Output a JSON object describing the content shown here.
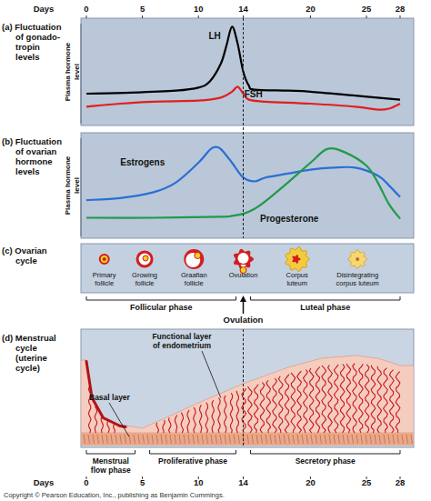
{
  "days_axis": {
    "label": "Days",
    "xlim": [
      0,
      28
    ],
    "ticks": [
      0,
      5,
      10,
      14,
      20,
      25,
      28
    ]
  },
  "chart_data": [
    {
      "type": "line",
      "title": "(a) Fluctuation of gonado-tropin levels",
      "ylabel": "Plasma hormone level",
      "xlim": [
        0,
        28
      ],
      "ylim": [
        0,
        100
      ],
      "tick_labels": false,
      "series": [
        {
          "name": "LH",
          "color": "#000000",
          "x": [
            0,
            4,
            8,
            10,
            11,
            12,
            12.5,
            13,
            13.5,
            14,
            14.5,
            15,
            18,
            20,
            24,
            28
          ],
          "values": [
            30,
            31,
            33,
            36,
            42,
            60,
            78,
            97,
            80,
            52,
            38,
            34,
            33,
            32,
            28,
            24
          ]
        },
        {
          "name": "FSH",
          "color": "#e0201e",
          "x": [
            0,
            3,
            6,
            10,
            12,
            13,
            13.5,
            14,
            14.5,
            16,
            20,
            24,
            26,
            27,
            28
          ],
          "values": [
            17,
            20,
            22,
            23,
            26,
            32,
            37,
            30,
            24,
            22,
            20,
            17,
            14,
            15,
            20
          ]
        }
      ]
    },
    {
      "type": "line",
      "title": "(b) Fluctuation of ovarian hormone levels",
      "ylabel": "Plasma hormone level",
      "xlim": [
        0,
        28
      ],
      "ylim": [
        0,
        100
      ],
      "tick_labels": false,
      "series": [
        {
          "name": "Estrogens",
          "color": "#2a6fd6",
          "x": [
            0,
            3,
            6,
            8,
            10,
            11,
            11.5,
            12,
            13,
            14,
            15,
            16,
            18,
            20,
            22,
            24,
            26,
            27,
            28
          ],
          "values": [
            37,
            39,
            45,
            55,
            75,
            88,
            91,
            89,
            75,
            60,
            56,
            60,
            64,
            68,
            70,
            70,
            62,
            52,
            40
          ]
        },
        {
          "name": "Progesterone",
          "color": "#1f9a4a",
          "x": [
            0,
            6,
            12,
            13,
            14,
            15,
            16,
            18,
            20,
            21.5,
            23,
            25,
            26,
            27,
            28
          ],
          "values": [
            19,
            19,
            20,
            21,
            23,
            28,
            36,
            55,
            75,
            89,
            86,
            72,
            55,
            33,
            18
          ]
        }
      ]
    }
  ],
  "ovarian_cycle": {
    "title": "(c) Ovarian cycle",
    "stages": [
      "Primary follicle",
      "Growing follicle",
      "Graafian follicle",
      "Ovulation",
      "Corpus luteum",
      "Disintegrating corpus luteum"
    ],
    "phases": [
      "Follicular phase",
      "Luteal phase"
    ],
    "phase_days": [
      [
        0,
        14
      ],
      [
        14,
        28
      ]
    ],
    "event": "Ovulation",
    "ovulation_day": 14
  },
  "menstrual_cycle": {
    "title": "(d) Menstrual cycle (uterine cycle)",
    "layers": [
      "Functional layer of endometrium",
      "Basal layer"
    ],
    "phases": [
      "Menstrual flow phase",
      "Proliferative phase",
      "Secretory phase"
    ],
    "phase_days": [
      [
        0,
        5
      ],
      [
        5,
        14
      ],
      [
        14,
        28
      ]
    ]
  },
  "copyright": "Copyright © Pearson Education, Inc., publishing as Benjamin Cummings."
}
